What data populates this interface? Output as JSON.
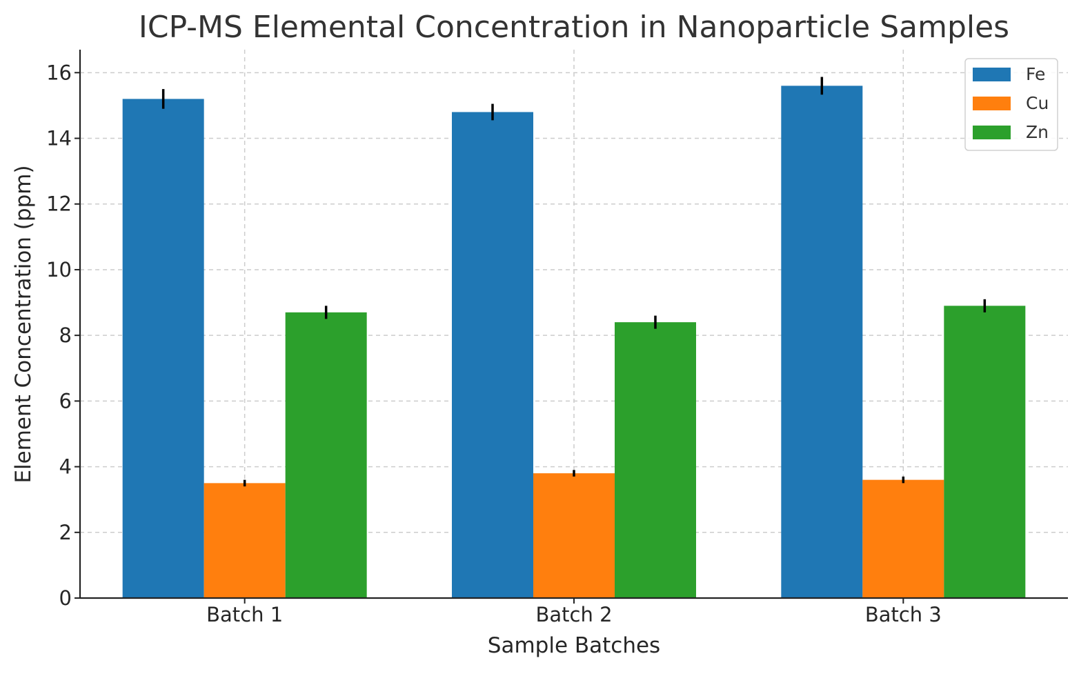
{
  "chart_data": {
    "type": "bar",
    "title": "ICP-MS Elemental Concentration in Nanoparticle Samples",
    "xlabel": "Sample Batches",
    "ylabel": "Element Concentration (ppm)",
    "categories": [
      "Batch 1",
      "Batch 2",
      "Batch 3"
    ],
    "series": [
      {
        "name": "Fe",
        "color": "#1f77b4",
        "values": [
          15.2,
          14.8,
          15.6
        ],
        "errors": [
          0.3,
          0.25,
          0.27
        ]
      },
      {
        "name": "Cu",
        "color": "#ff7f0e",
        "values": [
          3.5,
          3.8,
          3.6
        ],
        "errors": [
          0.1,
          0.1,
          0.1
        ]
      },
      {
        "name": "Zn",
        "color": "#2ca02c",
        "values": [
          8.7,
          8.4,
          8.9
        ],
        "errors": [
          0.2,
          0.2,
          0.2
        ]
      }
    ],
    "ylim": [
      0,
      16.7
    ],
    "yticks": [
      0,
      2,
      4,
      6,
      8,
      10,
      12,
      14,
      16
    ],
    "grid": true,
    "legend_position": "top-right"
  }
}
